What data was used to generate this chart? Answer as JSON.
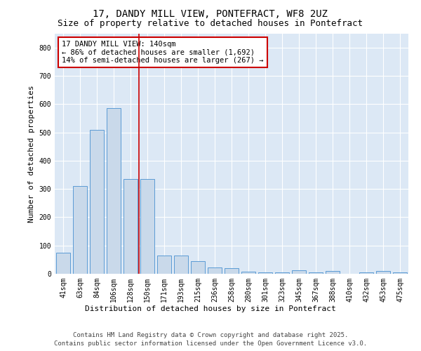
{
  "title_line1": "17, DANDY MILL VIEW, PONTEFRACT, WF8 2UZ",
  "title_line2": "Size of property relative to detached houses in Pontefract",
  "xlabel": "Distribution of detached houses by size in Pontefract",
  "ylabel": "Number of detached properties",
  "categories": [
    "41sqm",
    "63sqm",
    "84sqm",
    "106sqm",
    "128sqm",
    "150sqm",
    "171sqm",
    "193sqm",
    "215sqm",
    "236sqm",
    "258sqm",
    "280sqm",
    "301sqm",
    "323sqm",
    "345sqm",
    "367sqm",
    "388sqm",
    "410sqm",
    "432sqm",
    "453sqm",
    "475sqm"
  ],
  "values": [
    75,
    310,
    510,
    585,
    335,
    335,
    65,
    65,
    45,
    22,
    20,
    8,
    5,
    5,
    12,
    5,
    10,
    0,
    5,
    10,
    5
  ],
  "bar_color": "#c9d9ea",
  "bar_edge_color": "#5b9bd5",
  "vline_x_index": 4.5,
  "vline_color": "#cc0000",
  "annotation_box_text": "17 DANDY MILL VIEW: 140sqm\n← 86% of detached houses are smaller (1,692)\n14% of semi-detached houses are larger (267) →",
  "annotation_box_color": "#cc0000",
  "annotation_box_facecolor": "white",
  "ylim": [
    0,
    850
  ],
  "yticks": [
    0,
    100,
    200,
    300,
    400,
    500,
    600,
    700,
    800
  ],
  "plot_bg_color": "#dce8f5",
  "footer_line1": "Contains HM Land Registry data © Crown copyright and database right 2025.",
  "footer_line2": "Contains public sector information licensed under the Open Government Licence v3.0.",
  "title_fontsize": 10,
  "subtitle_fontsize": 9,
  "axis_label_fontsize": 8,
  "tick_fontsize": 7,
  "annotation_fontsize": 7.5,
  "footer_fontsize": 6.5
}
